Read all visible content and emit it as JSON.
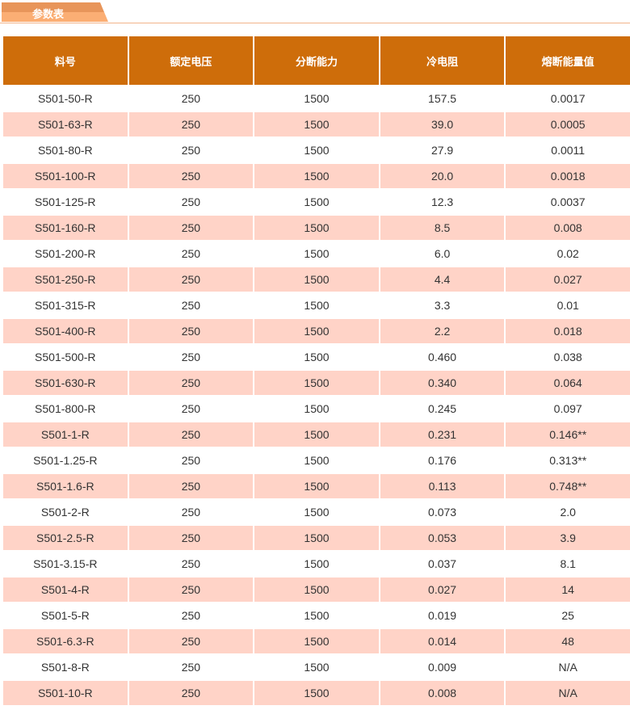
{
  "tab": {
    "label": "参数表"
  },
  "table": {
    "headers": [
      "料号",
      "额定电压",
      "分断能力",
      "冷电阻",
      "熔断能量值"
    ],
    "rows": [
      [
        "S501-50-R",
        "250",
        "1500",
        "157.5",
        "0.0017"
      ],
      [
        "S501-63-R",
        "250",
        "1500",
        "39.0",
        "0.0005"
      ],
      [
        "S501-80-R",
        "250",
        "1500",
        "27.9",
        "0.0011"
      ],
      [
        "S501-100-R",
        "250",
        "1500",
        "20.0",
        "0.0018"
      ],
      [
        "S501-125-R",
        "250",
        "1500",
        "12.3",
        "0.0037"
      ],
      [
        "S501-160-R",
        "250",
        "1500",
        "8.5",
        "0.008"
      ],
      [
        "S501-200-R",
        "250",
        "1500",
        "6.0",
        "0.02"
      ],
      [
        "S501-250-R",
        "250",
        "1500",
        "4.4",
        "0.027"
      ],
      [
        "S501-315-R",
        "250",
        "1500",
        "3.3",
        "0.01"
      ],
      [
        "S501-400-R",
        "250",
        "1500",
        "2.2",
        "0.018"
      ],
      [
        "S501-500-R",
        "250",
        "1500",
        "0.460",
        "0.038"
      ],
      [
        "S501-630-R",
        "250",
        "1500",
        "0.340",
        "0.064"
      ],
      [
        "S501-800-R",
        "250",
        "1500",
        "0.245",
        "0.097"
      ],
      [
        "S501-1-R",
        "250",
        "1500",
        "0.231",
        "0.146**"
      ],
      [
        "S501-1.25-R",
        "250",
        "1500",
        "0.176",
        "0.313**"
      ],
      [
        "S501-1.6-R",
        "250",
        "1500",
        "0.113",
        "0.748**"
      ],
      [
        "S501-2-R",
        "250",
        "1500",
        "0.073",
        "2.0"
      ],
      [
        "S501-2.5-R",
        "250",
        "1500",
        "0.053",
        "3.9"
      ],
      [
        "S501-3.15-R",
        "250",
        "1500",
        "0.037",
        "8.1"
      ],
      [
        "S501-4-R",
        "250",
        "1500",
        "0.027",
        "14"
      ],
      [
        "S501-5-R",
        "250",
        "1500",
        "0.019",
        "25"
      ],
      [
        "S501-6.3-R",
        "250",
        "1500",
        "0.014",
        "48"
      ],
      [
        "S501-8-R",
        "250",
        "1500",
        "0.009",
        "N/A"
      ],
      [
        "S501-10-R",
        "250",
        "1500",
        "0.008",
        "N/A"
      ]
    ]
  },
  "colors": {
    "header": "#ce6d0a",
    "alt_row": "#ffd3c7",
    "tab": "#fbae74"
  }
}
